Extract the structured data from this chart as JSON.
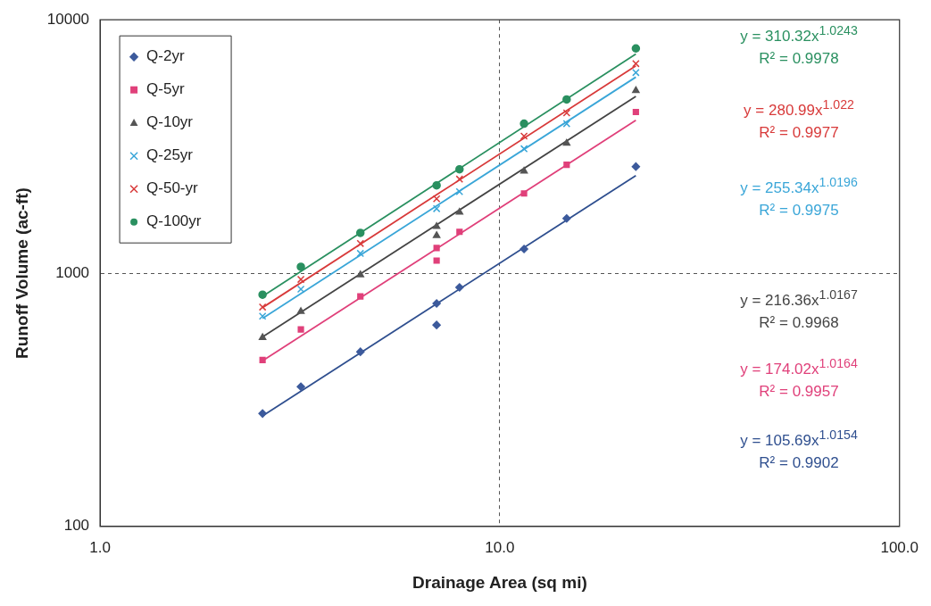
{
  "chart_data": {
    "type": "scatter",
    "xlabel": "Drainage Area (sq mi)",
    "ylabel": "Runoff Volume (ac-ft)",
    "x": [
      2.55,
      3.18,
      4.48,
      6.95,
      6.95,
      7.93,
      11.5,
      14.7,
      21.9
    ],
    "series": [
      {
        "name": "Q-2yr",
        "color": "#3c5a9c",
        "marker": "diamond",
        "values": [
          279,
          356,
          489,
          759,
          624,
          878,
          1245,
          1643,
          2633
        ]
      },
      {
        "name": "Q-5yr",
        "color": "#e0407a",
        "marker": "square",
        "values": [
          454,
          599,
          809,
          1256,
          1120,
          1455,
          2063,
          2678,
          4325
        ]
      },
      {
        "name": "Q-10yr",
        "color": "#555555",
        "marker": "triangle",
        "values": [
          557,
          705,
          984,
          1527,
          1407,
          1739,
          2529,
          3253,
          5260
        ]
      },
      {
        "name": "Q-25yr",
        "color": "#3aa6d8",
        "marker": "cross",
        "values": [
          676,
          864,
          1196,
          1796,
          null,
          2097,
          3098,
          3890,
          6190
        ]
      },
      {
        "name": "Q-50-yr",
        "color": "#d83a3a",
        "marker": "cross",
        "values": [
          734,
          944,
          1309,
          1965,
          null,
          2350,
          3473,
          4292,
          6713
        ]
      },
      {
        "name": "Q-100yr",
        "color": "#2a9060",
        "marker": "circle",
        "values": [
          822,
          1059,
          1442,
          2220,
          null,
          2570,
          3890,
          4850,
          7710
        ]
      },
      {
        "type": "line",
        "color": "#2f4f8f",
        "marker": "none",
        "x": [
          2.55,
          7,
          21.9
        ],
        "values": [
          273,
          762,
          2427
        ]
      },
      {
        "type": "line",
        "color": "#e0407a",
        "marker": "none",
        "x": [
          2.55,
          7,
          21.9
        ],
        "values": [
          451,
          1257,
          4013
        ]
      },
      {
        "type": "line",
        "color": "#444444",
        "marker": "none",
        "x": [
          2.55,
          7,
          21.9
        ],
        "values": [
          560,
          1563,
          4989
        ]
      },
      {
        "type": "line",
        "color": "#3aa6d8",
        "marker": "none",
        "x": [
          2.55,
          7,
          21.9
        ],
        "values": [
          663,
          1857,
          5941
        ]
      },
      {
        "type": "line",
        "color": "#d83a3a",
        "marker": "none",
        "x": [
          2.55,
          7,
          21.9
        ],
        "values": [
          731,
          2053,
          6586
        ]
      },
      {
        "type": "line",
        "color": "#2a9060",
        "marker": "none",
        "x": [
          2.55,
          7,
          21.9
        ],
        "values": [
          810,
          2277,
          7325
        ]
      }
    ],
    "annotations": [
      "y = 310.32x$^{1.0243}$",
      "R² = 0.9978",
      "y = 280.99x$^{1.022}$",
      "R² = 0.9977",
      "y = 255.34x$^{1.0196}$",
      "R² = 0.9975",
      "y = 216.36x$^{1.0167}$",
      "R² = 0.9968",
      "y = 174.02x$^{1.0164}$",
      "R² = 0.9957",
      "y = 105.69x$^{1.0154}$",
      "R² = 0.9902"
    ],
    "log": "xy",
    "xlim": [
      1,
      100
    ],
    "xticks": [
      {
        "value": 1,
        "label": "1.0"
      },
      {
        "value": 10,
        "label": "10.0"
      },
      {
        "value": 100,
        "label": "100.0"
      }
    ],
    "ylim": [
      100,
      10000
    ],
    "yticks": [
      100,
      1000,
      10000
    ],
    "grid": true,
    "legend": "top left"
  }
}
